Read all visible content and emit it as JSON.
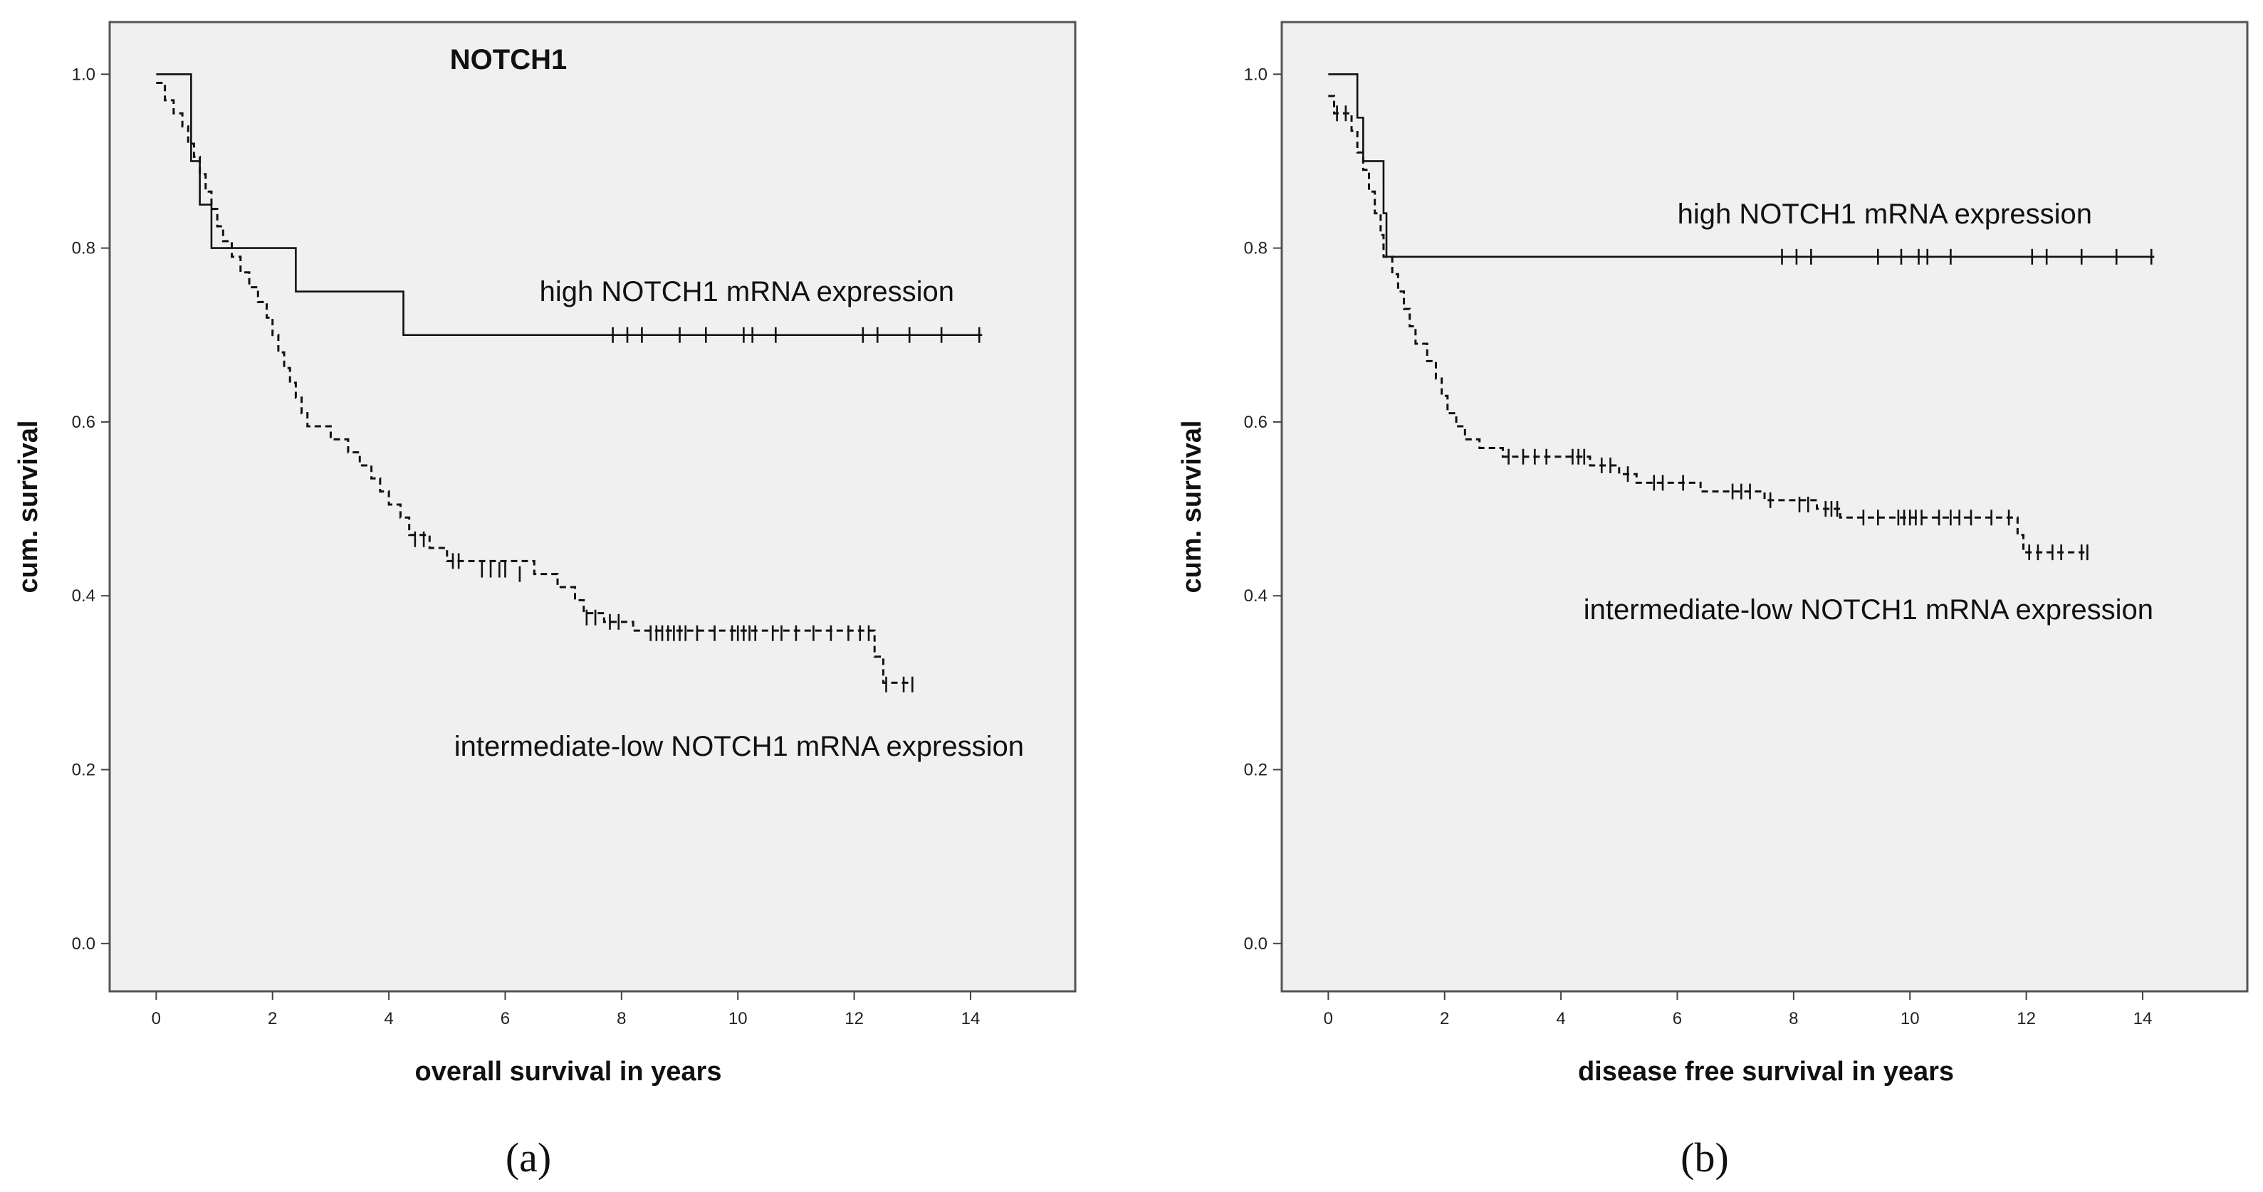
{
  "chart_data": [
    {
      "type": "line",
      "panel_label": "(a)",
      "title": "NOTCH1",
      "xlabel": "overall survival in years",
      "ylabel": "cum. survival",
      "xlim": [
        -0.8,
        15.8
      ],
      "ylim": [
        -0.055,
        1.06
      ],
      "xticks": [
        0,
        2,
        4,
        6,
        8,
        10,
        12,
        14
      ],
      "yticks": [
        0.0,
        0.2,
        0.4,
        0.6,
        0.8,
        1.0
      ],
      "xtick_labels": [
        "0",
        "2",
        "4",
        "6",
        "8",
        "10",
        "12",
        "14"
      ],
      "ytick_labels": [
        "0.0",
        "0.2",
        "0.4",
        "0.6",
        "0.8",
        "1.0"
      ],
      "grid": false,
      "series": [
        {
          "name": "high NOTCH1 mRNA expression",
          "style": "solid",
          "steps": [
            [
              0,
              1.0
            ],
            [
              0.6,
              0.9
            ],
            [
              0.75,
              0.85
            ],
            [
              0.95,
              0.8
            ],
            [
              2.4,
              0.75
            ],
            [
              4.25,
              0.7
            ],
            [
              14.2,
              0.7
            ]
          ],
          "censored": [
            [
              7.85,
              0.7
            ],
            [
              8.1,
              0.7
            ],
            [
              8.35,
              0.7
            ],
            [
              9.0,
              0.7
            ],
            [
              9.45,
              0.7
            ],
            [
              10.1,
              0.7
            ],
            [
              10.25,
              0.7
            ],
            [
              10.65,
              0.7
            ],
            [
              12.15,
              0.7
            ],
            [
              12.4,
              0.7
            ],
            [
              12.95,
              0.7
            ],
            [
              13.5,
              0.7
            ],
            [
              14.15,
              0.7
            ]
          ]
        },
        {
          "name": "intermediate-low NOTCH1 mRNA expression",
          "style": "dashed",
          "steps": [
            [
              0,
              0.99
            ],
            [
              0.15,
              0.97
            ],
            [
              0.3,
              0.955
            ],
            [
              0.45,
              0.94
            ],
            [
              0.55,
              0.92
            ],
            [
              0.65,
              0.905
            ],
            [
              0.75,
              0.885
            ],
            [
              0.85,
              0.865
            ],
            [
              0.95,
              0.845
            ],
            [
              1.05,
              0.825
            ],
            [
              1.15,
              0.808
            ],
            [
              1.3,
              0.79
            ],
            [
              1.45,
              0.772
            ],
            [
              1.6,
              0.755
            ],
            [
              1.75,
              0.738
            ],
            [
              1.9,
              0.72
            ],
            [
              2.0,
              0.7
            ],
            [
              2.1,
              0.68
            ],
            [
              2.2,
              0.662
            ],
            [
              2.3,
              0.645
            ],
            [
              2.4,
              0.628
            ],
            [
              2.5,
              0.61
            ],
            [
              2.6,
              0.595
            ],
            [
              3.0,
              0.58
            ],
            [
              3.3,
              0.565
            ],
            [
              3.5,
              0.55
            ],
            [
              3.7,
              0.535
            ],
            [
              3.85,
              0.52
            ],
            [
              4.0,
              0.505
            ],
            [
              4.2,
              0.49
            ],
            [
              4.35,
              0.47
            ],
            [
              4.7,
              0.455
            ],
            [
              5.0,
              0.44
            ],
            [
              6.5,
              0.425
            ],
            [
              6.9,
              0.41
            ],
            [
              7.2,
              0.395
            ],
            [
              7.35,
              0.38
            ],
            [
              7.7,
              0.37
            ],
            [
              8.2,
              0.36
            ],
            [
              12.35,
              0.33
            ],
            [
              12.5,
              0.3
            ],
            [
              13.0,
              0.3
            ]
          ],
          "censored": [
            [
              4.45,
              0.465
            ],
            [
              4.6,
              0.465
            ],
            [
              5.1,
              0.44
            ],
            [
              5.2,
              0.44
            ],
            [
              5.6,
              0.43
            ],
            [
              5.75,
              0.43
            ],
            [
              5.9,
              0.43
            ],
            [
              6.0,
              0.43
            ],
            [
              6.25,
              0.425
            ],
            [
              7.4,
              0.375
            ],
            [
              7.55,
              0.375
            ],
            [
              7.8,
              0.37
            ],
            [
              7.95,
              0.37
            ],
            [
              8.5,
              0.357
            ],
            [
              8.6,
              0.357
            ],
            [
              8.7,
              0.357
            ],
            [
              8.8,
              0.357
            ],
            [
              8.9,
              0.357
            ],
            [
              9.0,
              0.357
            ],
            [
              9.1,
              0.357
            ],
            [
              9.3,
              0.357
            ],
            [
              9.6,
              0.357
            ],
            [
              9.9,
              0.357
            ],
            [
              10.0,
              0.357
            ],
            [
              10.1,
              0.357
            ],
            [
              10.2,
              0.357
            ],
            [
              10.3,
              0.357
            ],
            [
              10.6,
              0.357
            ],
            [
              10.75,
              0.357
            ],
            [
              11.0,
              0.357
            ],
            [
              11.3,
              0.357
            ],
            [
              11.6,
              0.357
            ],
            [
              11.9,
              0.357
            ],
            [
              12.1,
              0.357
            ],
            [
              12.25,
              0.357
            ],
            [
              12.55,
              0.298
            ],
            [
              12.85,
              0.298
            ],
            [
              13.0,
              0.298
            ]
          ]
        }
      ],
      "annotations": [
        "high NOTCH1 mRNA expression",
        "intermediate-low NOTCH1 mRNA expression"
      ]
    },
    {
      "type": "line",
      "panel_label": "(b)",
      "title": "",
      "xlabel": "disease free survival in years",
      "ylabel": "cum. survival",
      "xlim": [
        -0.8,
        15.8
      ],
      "ylim": [
        -0.055,
        1.06
      ],
      "xticks": [
        0,
        2,
        4,
        6,
        8,
        10,
        12,
        14
      ],
      "yticks": [
        0.0,
        0.2,
        0.4,
        0.6,
        0.8,
        1.0
      ],
      "xtick_labels": [
        "0",
        "2",
        "4",
        "6",
        "8",
        "10",
        "12",
        "14"
      ],
      "ytick_labels": [
        "0.0",
        "0.2",
        "0.4",
        "0.6",
        "0.8",
        "1.0"
      ],
      "grid": false,
      "series": [
        {
          "name": "high NOTCH1 mRNA expression",
          "style": "solid",
          "steps": [
            [
              0,
              1.0
            ],
            [
              0.5,
              0.95
            ],
            [
              0.6,
              0.9
            ],
            [
              0.95,
              0.84
            ],
            [
              1.0,
              0.79
            ],
            [
              14.2,
              0.79
            ]
          ],
          "censored": [
            [
              7.8,
              0.79
            ],
            [
              8.05,
              0.79
            ],
            [
              8.3,
              0.79
            ],
            [
              9.45,
              0.79
            ],
            [
              9.85,
              0.79
            ],
            [
              10.15,
              0.79
            ],
            [
              10.3,
              0.79
            ],
            [
              10.7,
              0.79
            ],
            [
              12.1,
              0.79
            ],
            [
              12.35,
              0.79
            ],
            [
              12.95,
              0.79
            ],
            [
              13.55,
              0.79
            ],
            [
              14.15,
              0.79
            ]
          ]
        },
        {
          "name": "intermediate-low NOTCH1 mRNA expression",
          "style": "dashed",
          "steps": [
            [
              0,
              0.975
            ],
            [
              0.1,
              0.955
            ],
            [
              0.4,
              0.935
            ],
            [
              0.5,
              0.91
            ],
            [
              0.6,
              0.89
            ],
            [
              0.7,
              0.865
            ],
            [
              0.8,
              0.84
            ],
            [
              0.9,
              0.815
            ],
            [
              0.95,
              0.79
            ],
            [
              1.1,
              0.77
            ],
            [
              1.2,
              0.75
            ],
            [
              1.3,
              0.73
            ],
            [
              1.4,
              0.71
            ],
            [
              1.5,
              0.69
            ],
            [
              1.7,
              0.67
            ],
            [
              1.85,
              0.65
            ],
            [
              1.95,
              0.63
            ],
            [
              2.05,
              0.61
            ],
            [
              2.2,
              0.595
            ],
            [
              2.35,
              0.58
            ],
            [
              2.6,
              0.57
            ],
            [
              3.0,
              0.56
            ],
            [
              4.5,
              0.55
            ],
            [
              5.0,
              0.54
            ],
            [
              5.3,
              0.53
            ],
            [
              6.4,
              0.52
            ],
            [
              7.5,
              0.51
            ],
            [
              8.4,
              0.5
            ],
            [
              8.8,
              0.49
            ],
            [
              11.85,
              0.47
            ],
            [
              11.95,
              0.45
            ],
            [
              13.0,
              0.45
            ]
          ],
          "censored": [
            [
              0.15,
              0.955
            ],
            [
              0.3,
              0.955
            ],
            [
              3.1,
              0.56
            ],
            [
              3.35,
              0.56
            ],
            [
              3.55,
              0.56
            ],
            [
              3.75,
              0.56
            ],
            [
              4.2,
              0.56
            ],
            [
              4.3,
              0.56
            ],
            [
              4.4,
              0.56
            ],
            [
              4.7,
              0.55
            ],
            [
              4.85,
              0.55
            ],
            [
              5.15,
              0.54
            ],
            [
              5.6,
              0.53
            ],
            [
              5.75,
              0.53
            ],
            [
              6.1,
              0.53
            ],
            [
              6.95,
              0.52
            ],
            [
              7.1,
              0.52
            ],
            [
              7.25,
              0.52
            ],
            [
              7.6,
              0.51
            ],
            [
              8.1,
              0.505
            ],
            [
              8.25,
              0.505
            ],
            [
              8.55,
              0.5
            ],
            [
              8.65,
              0.5
            ],
            [
              8.75,
              0.5
            ],
            [
              9.2,
              0.49
            ],
            [
              9.45,
              0.49
            ],
            [
              9.8,
              0.49
            ],
            [
              9.9,
              0.49
            ],
            [
              10.0,
              0.49
            ],
            [
              10.1,
              0.49
            ],
            [
              10.2,
              0.49
            ],
            [
              10.5,
              0.49
            ],
            [
              10.7,
              0.49
            ],
            [
              10.85,
              0.49
            ],
            [
              11.05,
              0.49
            ],
            [
              11.4,
              0.49
            ],
            [
              11.7,
              0.49
            ],
            [
              12.05,
              0.45
            ],
            [
              12.2,
              0.45
            ],
            [
              12.45,
              0.45
            ],
            [
              12.6,
              0.45
            ],
            [
              12.95,
              0.45
            ],
            [
              13.05,
              0.45
            ]
          ]
        }
      ],
      "annotations": [
        "high NOTCH1 mRNA expression",
        "intermediate-low NOTCH1 mRNA expression"
      ]
    }
  ]
}
